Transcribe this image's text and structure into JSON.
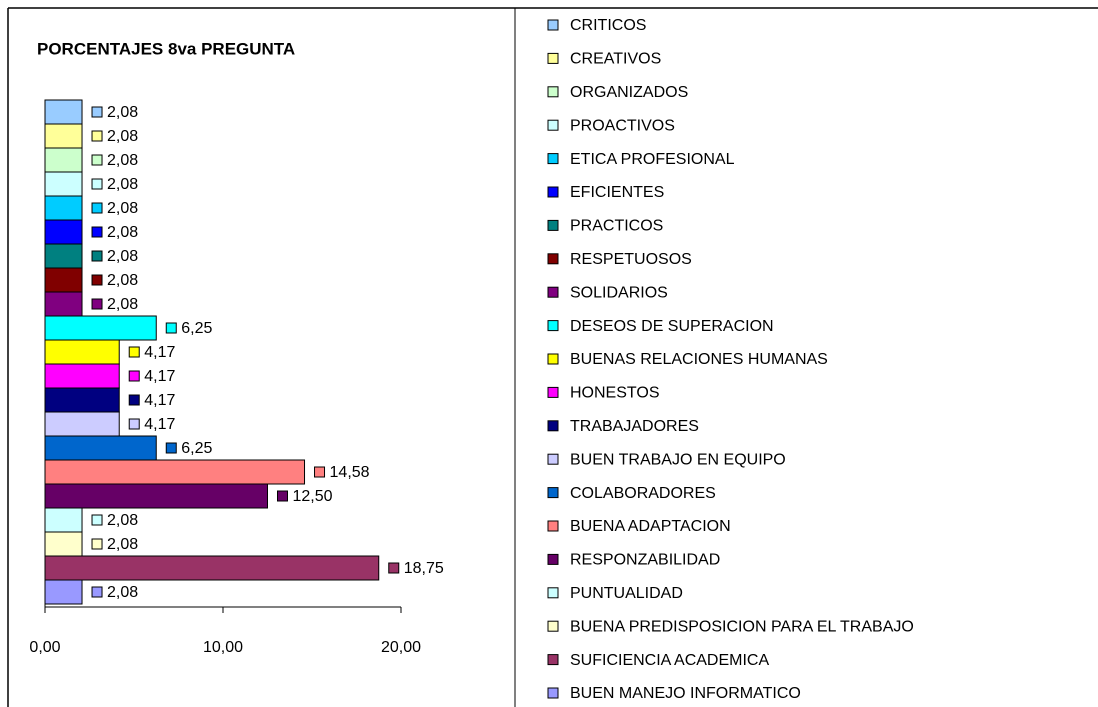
{
  "chart_data": {
    "type": "barh",
    "title": "PORCENTAJES 8va PREGUNTA",
    "categories": [
      "CRITICOS",
      "CREATIVOS",
      "ORGANIZADOS",
      "PROACTIVOS",
      "ETICA PROFESIONAL",
      "EFICIENTES",
      "PRACTICOS",
      "RESPETUOSOS",
      "SOLIDARIOS",
      "DESEOS DE SUPERACION",
      "BUENAS RELACIONES HUMANAS",
      "HONESTOS",
      "TRABAJADORES",
      "BUEN TRABAJO EN EQUIPO",
      "COLABORADORES",
      "BUENA ADAPTACION",
      "RESPONZABILIDAD",
      "PUNTUALIDAD",
      "BUENA PREDISPOSICION PARA EL TRABAJO",
      "SUFICIENCIA ACADEMICA",
      "BUEN MANEJO INFORMATICO"
    ],
    "values": [
      2.08,
      2.08,
      2.08,
      2.08,
      2.08,
      2.08,
      2.08,
      2.08,
      2.08,
      6.25,
      4.17,
      4.17,
      4.17,
      4.17,
      6.25,
      14.58,
      12.5,
      2.08,
      2.08,
      18.75,
      2.08
    ],
    "value_labels": [
      "2,08",
      "2,08",
      "2,08",
      "2,08",
      "2,08",
      "2,08",
      "2,08",
      "2,08",
      "2,08",
      "6,25",
      "4,17",
      "4,17",
      "4,17",
      "4,17",
      "6,25",
      "14,58",
      "12,50",
      "2,08",
      "2,08",
      "18,75",
      "2,08"
    ],
    "colors": [
      "#99ccff",
      "#ffff99",
      "#ccffcc",
      "#ccffff",
      "#00ccff",
      "#0000ff",
      "#008080",
      "#800000",
      "#800080",
      "#00ffff",
      "#ffff00",
      "#ff00ff",
      "#000080",
      "#ccccff",
      "#0066cc",
      "#ff8080",
      "#660066",
      "#ccffff",
      "#ffffcc",
      "#993366",
      "#9999ff"
    ],
    "xlim": [
      0,
      20
    ],
    "xticks": [
      {
        "value": 0,
        "label": "0,00"
      },
      {
        "value": 10,
        "label": "10,00"
      },
      {
        "value": 20,
        "label": "20,00"
      }
    ],
    "legend": "right"
  }
}
